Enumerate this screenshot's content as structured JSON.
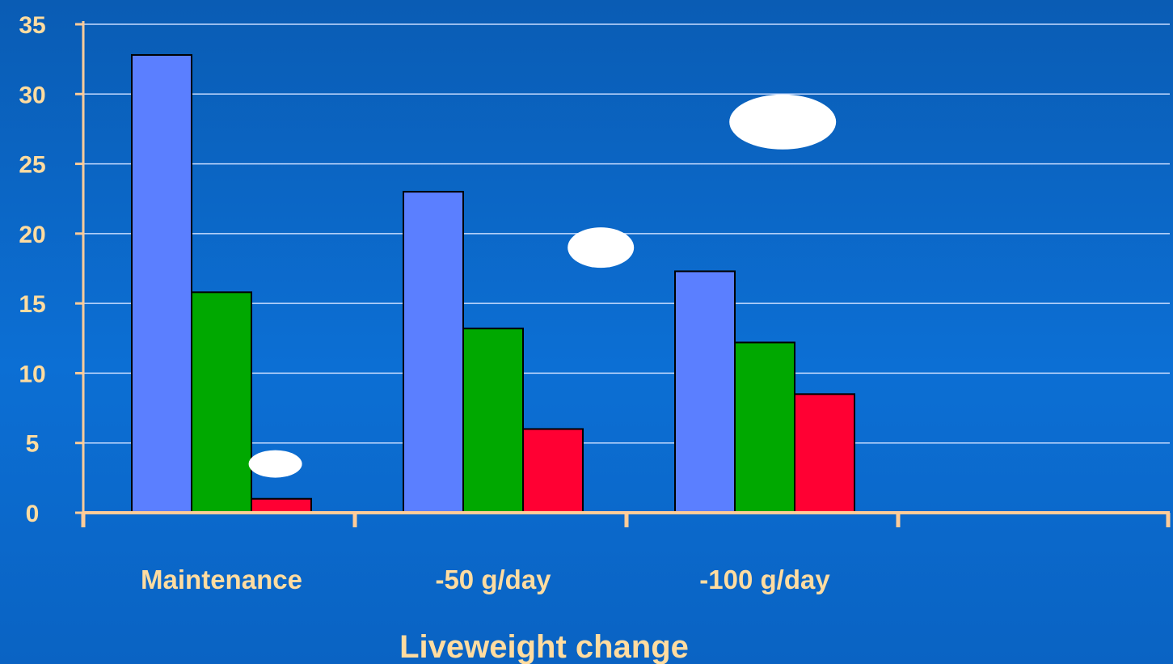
{
  "chart_data": {
    "type": "bar",
    "categories": [
      "Maintenance",
      "-50 g/day",
      "-100 g/day",
      ""
    ],
    "series": [
      {
        "color": "#5b7fff",
        "values": [
          32.8,
          23.0,
          17.3,
          null
        ]
      },
      {
        "color": "#00a800",
        "values": [
          15.8,
          13.2,
          12.2,
          null
        ]
      },
      {
        "color": "#ff0033",
        "values": [
          1.0,
          6.0,
          8.5,
          null
        ]
      }
    ],
    "xlabel": "Liveweight change",
    "ylabel": "",
    "ylim": [
      0,
      35
    ],
    "yticks": [
      0,
      5,
      10,
      15,
      20,
      25,
      30,
      35
    ],
    "grid": true,
    "colors": {
      "axis": "#ffcc99",
      "grid": "#c8dcff",
      "text": "#ffdca0",
      "callout": "#ffffff"
    }
  },
  "annotations": [
    {
      "name": "callout-maintenance",
      "x_category": 0,
      "y_value": 3.5
    },
    {
      "name": "callout-50g",
      "x_category": 1,
      "y_value": 19.0
    },
    {
      "name": "callout-100g",
      "x_category": 2,
      "y_value": 28.0
    }
  ]
}
